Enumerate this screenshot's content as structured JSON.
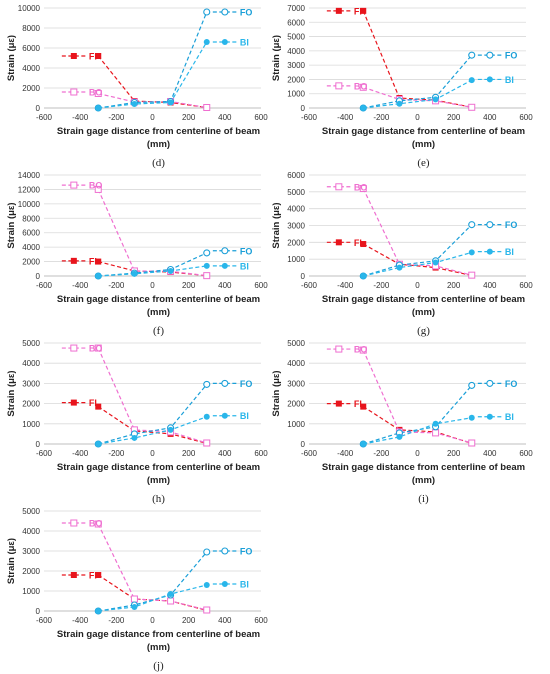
{
  "colors": {
    "FI": "#e8141c",
    "BO": "#ef6fd0",
    "FO": "#1a9fd8",
    "BI": "#29b6ea",
    "grid": "#d9d9d9",
    "axis": "#bfbfbf"
  },
  "chart_data": [
    {
      "id": "d",
      "type": "line",
      "caption": "(d)",
      "xlabel": "Strain gage distance from centerline of beam",
      "xunit": "(mm)",
      "ylabel": "Strain (με)",
      "xlim": [
        -600,
        600
      ],
      "ylim": [
        0,
        10000
      ],
      "xticks": [
        "-600",
        "-400",
        "-200",
        "0",
        "200",
        "400",
        "600"
      ],
      "yticks": [
        "0",
        "2000",
        "4000",
        "6000",
        "8000",
        "10000"
      ],
      "series": [
        {
          "name": "FI",
          "marker": "square-filled",
          "x": [
            -300,
            -100,
            100,
            300
          ],
          "y": [
            5200,
            700,
            550,
            50
          ],
          "legend_y": 5200
        },
        {
          "name": "BO",
          "marker": "square-open",
          "x": [
            -300,
            -100,
            100,
            300
          ],
          "y": [
            1450,
            600,
            650,
            50
          ],
          "legend_y": 1600
        },
        {
          "name": "FO",
          "marker": "circle-open",
          "x": [
            -300,
            -100,
            100,
            300
          ],
          "y": [
            0,
            550,
            650,
            9600
          ],
          "legend_y": 9600
        },
        {
          "name": "BI",
          "marker": "circle-filled",
          "x": [
            -300,
            -100,
            100,
            300
          ],
          "y": [
            0,
            400,
            550,
            6600
          ],
          "legend_y": 6600
        }
      ]
    },
    {
      "id": "e",
      "type": "line",
      "caption": "(e)",
      "xlabel": "Strain gage distance from centerline of beam",
      "xunit": "(mm)",
      "ylabel": "Strain (με)",
      "xlim": [
        -600,
        600
      ],
      "ylim": [
        0,
        7000
      ],
      "xticks": [
        "-600",
        "-400",
        "-200",
        "0",
        "200",
        "400",
        "600"
      ],
      "yticks": [
        "0",
        "1000",
        "2000",
        "3000",
        "4000",
        "5000",
        "6000",
        "7000"
      ],
      "series": [
        {
          "name": "FI",
          "marker": "square-filled",
          "x": [
            -300,
            -100,
            100,
            300
          ],
          "y": [
            6800,
            700,
            550,
            50
          ],
          "legend_y": 6800
        },
        {
          "name": "BO",
          "marker": "square-open",
          "x": [
            -300,
            -100,
            100,
            300
          ],
          "y": [
            1450,
            600,
            500,
            50
          ],
          "legend_y": 1550
        },
        {
          "name": "FO",
          "marker": "circle-open",
          "x": [
            -300,
            -100,
            100,
            300
          ],
          "y": [
            0,
            500,
            750,
            3700
          ],
          "legend_y": 3700
        },
        {
          "name": "BI",
          "marker": "circle-filled",
          "x": [
            -300,
            -100,
            100,
            300
          ],
          "y": [
            0,
            300,
            600,
            1950
          ],
          "legend_y": 2000
        }
      ]
    },
    {
      "id": "f",
      "type": "line",
      "caption": "(f)",
      "xlabel": "Strain gage distance from centerline of beam",
      "xunit": "(mm)",
      "ylabel": "Strain (με)",
      "xlim": [
        -600,
        600
      ],
      "ylim": [
        0,
        14000
      ],
      "xticks": [
        "-600",
        "-400",
        "-200",
        "0",
        "200",
        "400",
        "600"
      ],
      "yticks": [
        "0",
        "2000",
        "4000",
        "6000",
        "8000",
        "10000",
        "12000",
        "14000"
      ],
      "series": [
        {
          "name": "FI",
          "marker": "square-filled",
          "x": [
            -300,
            -100,
            100,
            300
          ],
          "y": [
            2000,
            700,
            550,
            50
          ],
          "legend_y": 2100
        },
        {
          "name": "BO",
          "marker": "square-open",
          "x": [
            -300,
            -100,
            100,
            300
          ],
          "y": [
            12000,
            700,
            650,
            50
          ],
          "legend_y": 12600
        },
        {
          "name": "FO",
          "marker": "circle-open",
          "x": [
            -300,
            -100,
            100,
            300
          ],
          "y": [
            0,
            400,
            900,
            3200
          ],
          "legend_y": 3500
        },
        {
          "name": "BI",
          "marker": "circle-filled",
          "x": [
            -300,
            -100,
            100,
            300
          ],
          "y": [
            0,
            300,
            700,
            1400
          ],
          "legend_y": 1400
        }
      ]
    },
    {
      "id": "g",
      "type": "line",
      "caption": "(g)",
      "xlabel": "Strain gage distance from centerline of beam",
      "xunit": "(mm)",
      "ylabel": "Strain (με)",
      "xlim": [
        -600,
        600
      ],
      "ylim": [
        0,
        6000
      ],
      "xticks": [
        "-600",
        "-400",
        "-200",
        "0",
        "200",
        "400",
        "600"
      ],
      "yticks": [
        "0",
        "1000",
        "2000",
        "3000",
        "4000",
        "5000",
        "6000"
      ],
      "series": [
        {
          "name": "FI",
          "marker": "square-filled",
          "x": [
            -300,
            -100,
            100,
            300
          ],
          "y": [
            1900,
            700,
            500,
            30
          ],
          "legend_y": 2000
        },
        {
          "name": "BO",
          "marker": "square-open",
          "x": [
            -300,
            -100,
            100,
            300
          ],
          "y": [
            5200,
            700,
            600,
            50
          ],
          "legend_y": 5300
        },
        {
          "name": "FO",
          "marker": "circle-open",
          "x": [
            -300,
            -100,
            100,
            300
          ],
          "y": [
            0,
            650,
            900,
            3050
          ],
          "legend_y": 3050
        },
        {
          "name": "BI",
          "marker": "circle-filled",
          "x": [
            -300,
            -100,
            100,
            300
          ],
          "y": [
            0,
            500,
            800,
            1400
          ],
          "legend_y": 1450
        }
      ]
    },
    {
      "id": "h",
      "type": "line",
      "caption": "(h)",
      "xlabel": "Strain gage distance from centerline of beam",
      "xunit": "(mm)",
      "ylabel": "Strain (με)",
      "xlim": [
        -600,
        600
      ],
      "ylim": [
        0,
        5000
      ],
      "xticks": [
        "-600",
        "-400",
        "-200",
        "0",
        "200",
        "400",
        "600"
      ],
      "yticks": [
        "0",
        "1000",
        "2000",
        "3000",
        "4000",
        "5000"
      ],
      "series": [
        {
          "name": "FI",
          "marker": "square-filled",
          "x": [
            -300,
            -100,
            100,
            300
          ],
          "y": [
            1850,
            650,
            500,
            30
          ],
          "legend_y": 2050
        },
        {
          "name": "BO",
          "marker": "square-open",
          "x": [
            -300,
            -100,
            100,
            300
          ],
          "y": [
            4750,
            700,
            600,
            50
          ],
          "legend_y": 4750
        },
        {
          "name": "FO",
          "marker": "circle-open",
          "x": [
            -300,
            -100,
            100,
            300
          ],
          "y": [
            0,
            500,
            800,
            2950
          ],
          "legend_y": 3000
        },
        {
          "name": "BI",
          "marker": "circle-filled",
          "x": [
            -300,
            -100,
            100,
            300
          ],
          "y": [
            0,
            300,
            700,
            1350
          ],
          "legend_y": 1400
        }
      ]
    },
    {
      "id": "i",
      "type": "line",
      "caption": "(i)",
      "xlabel": "Strain gage distance from centerline of beam",
      "xunit": "(mm)",
      "ylabel": "Strain (με)",
      "xlim": [
        -600,
        600
      ],
      "ylim": [
        0,
        5000
      ],
      "xticks": [
        "-600",
        "-400",
        "-200",
        "0",
        "200",
        "400",
        "600"
      ],
      "yticks": [
        "0",
        "1000",
        "2000",
        "3000",
        "4000",
        "5000"
      ],
      "series": [
        {
          "name": "FI",
          "marker": "square-filled",
          "x": [
            -300,
            -100,
            100,
            300
          ],
          "y": [
            1850,
            700,
            600,
            30
          ],
          "legend_y": 2000
        },
        {
          "name": "BO",
          "marker": "square-open",
          "x": [
            -300,
            -100,
            100,
            300
          ],
          "y": [
            4650,
            600,
            550,
            50
          ],
          "legend_y": 4700
        },
        {
          "name": "FO",
          "marker": "circle-open",
          "x": [
            -300,
            -100,
            100,
            300
          ],
          "y": [
            0,
            550,
            850,
            2900
          ],
          "legend_y": 3000
        },
        {
          "name": "BI",
          "marker": "circle-filled",
          "x": [
            -300,
            -100,
            100,
            300
          ],
          "y": [
            0,
            350,
            1000,
            1300
          ],
          "legend_y": 1350
        }
      ]
    },
    {
      "id": "j",
      "type": "line",
      "caption": "(j)",
      "xlabel": "Strain gage distance from centerline of beam",
      "xunit": "(mm)",
      "ylabel": "Strain (με)",
      "xlim": [
        -600,
        600
      ],
      "ylim": [
        0,
        5000
      ],
      "xticks": [
        "-600",
        "-400",
        "-200",
        "0",
        "200",
        "400",
        "600"
      ],
      "yticks": [
        "0",
        "1000",
        "2000",
        "3000",
        "4000",
        "5000"
      ],
      "series": [
        {
          "name": "FI",
          "marker": "square-filled",
          "x": [
            -300,
            -100,
            100,
            300
          ],
          "y": [
            1800,
            600,
            500,
            30
          ],
          "legend_y": 1800
        },
        {
          "name": "BO",
          "marker": "square-open",
          "x": [
            -300,
            -100,
            100,
            300
          ],
          "y": [
            4350,
            600,
            500,
            50
          ],
          "legend_y": 4400
        },
        {
          "name": "FO",
          "marker": "circle-open",
          "x": [
            -300,
            -100,
            100,
            300
          ],
          "y": [
            0,
            300,
            800,
            2950
          ],
          "legend_y": 3000
        },
        {
          "name": "BI",
          "marker": "circle-filled",
          "x": [
            -300,
            -100,
            100,
            300
          ],
          "y": [
            0,
            200,
            850,
            1300
          ],
          "legend_y": 1350
        }
      ]
    }
  ]
}
